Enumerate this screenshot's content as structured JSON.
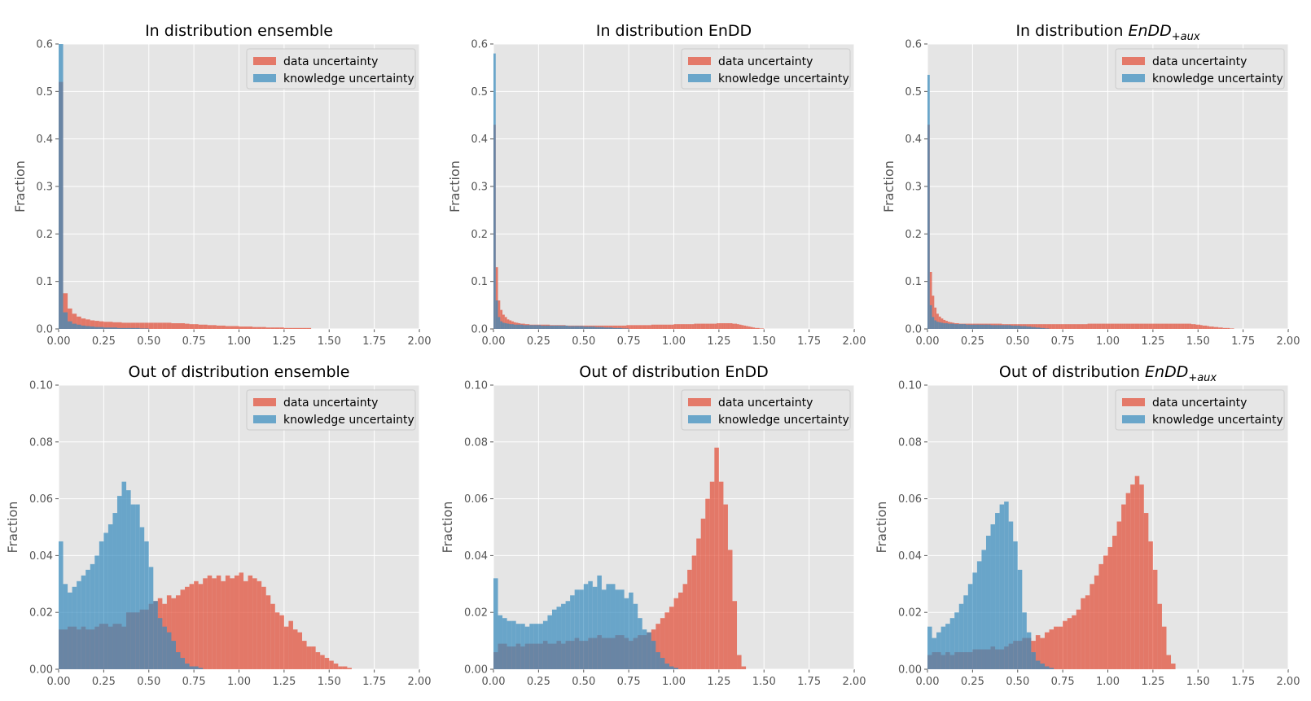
{
  "figure": {
    "grid": true,
    "background": "#e5e5e5",
    "colors": {
      "data": "#e24a33",
      "knowledge": "#348abd",
      "overlap": "#5a6b8a"
    }
  },
  "chart_data": [
    {
      "type": "histogram",
      "title": "In distribution ensemble",
      "title_parts": [
        "In distribution ensemble"
      ],
      "ylabel": "Fraction",
      "xlim": [
        0,
        2
      ],
      "ylim": [
        0,
        0.6
      ],
      "xticks": [
        "0.00",
        "0.25",
        "0.50",
        "0.75",
        "1.00",
        "1.25",
        "1.50",
        "1.75",
        "2.00"
      ],
      "yticks": [
        "0.0",
        "0.1",
        "0.2",
        "0.3",
        "0.4",
        "0.5",
        "0.6"
      ],
      "legend": "top-right",
      "bin_width": 0.025,
      "series": [
        {
          "name": "data uncertainty",
          "color": "#e24a33",
          "values": [
            0.52,
            0.075,
            0.043,
            0.032,
            0.026,
            0.022,
            0.02,
            0.018,
            0.017,
            0.016,
            0.015,
            0.015,
            0.014,
            0.014,
            0.013,
            0.013,
            0.013,
            0.013,
            0.013,
            0.013,
            0.013,
            0.013,
            0.013,
            0.013,
            0.013,
            0.012,
            0.012,
            0.012,
            0.011,
            0.01,
            0.01,
            0.009,
            0.009,
            0.008,
            0.008,
            0.007,
            0.007,
            0.006,
            0.006,
            0.006,
            0.005,
            0.005,
            0.005,
            0.004,
            0.004,
            0.004,
            0.003,
            0.003,
            0.003,
            0.003,
            0.002,
            0.002,
            0.002,
            0.002,
            0.002,
            0.002
          ]
        },
        {
          "name": "knowledge uncertainty",
          "color": "#348abd",
          "values": [
            0.6,
            0.035,
            0.016,
            0.011,
            0.009,
            0.007,
            0.006,
            0.005,
            0.004,
            0.004,
            0.003,
            0.003,
            0.003,
            0.002,
            0.002,
            0.002,
            0.002,
            0.002,
            0.001,
            0.001
          ]
        }
      ]
    },
    {
      "type": "histogram",
      "title": "In distribution EnDD",
      "title_parts": [
        "In distribution EnDD"
      ],
      "ylabel": "Fraction",
      "xlim": [
        0,
        2
      ],
      "ylim": [
        0,
        0.6
      ],
      "xticks": [
        "0.00",
        "0.25",
        "0.50",
        "0.75",
        "1.00",
        "1.25",
        "1.50",
        "1.75",
        "2.00"
      ],
      "yticks": [
        "0.0",
        "0.1",
        "0.2",
        "0.3",
        "0.4",
        "0.5",
        "0.6"
      ],
      "legend": "top-right",
      "bin_width": 0.0125,
      "series": [
        {
          "name": "data uncertainty",
          "color": "#e24a33",
          "values": [
            0.43,
            0.13,
            0.06,
            0.04,
            0.03,
            0.025,
            0.02,
            0.018,
            0.016,
            0.014,
            0.013,
            0.012,
            0.011,
            0.011,
            0.01,
            0.01,
            0.009,
            0.009,
            0.009,
            0.009,
            0.009,
            0.009,
            0.009,
            0.009,
            0.009,
            0.008,
            0.008,
            0.008,
            0.008,
            0.008,
            0.008,
            0.008,
            0.007,
            0.007,
            0.007,
            0.007,
            0.007,
            0.007,
            0.007,
            0.007,
            0.007,
            0.007,
            0.007,
            0.007,
            0.007,
            0.007,
            0.007,
            0.007,
            0.007,
            0.007,
            0.007,
            0.007,
            0.007,
            0.007,
            0.007,
            0.007,
            0.007,
            0.007,
            0.007,
            0.008,
            0.008,
            0.008,
            0.008,
            0.008,
            0.008,
            0.008,
            0.008,
            0.008,
            0.008,
            0.008,
            0.009,
            0.009,
            0.009,
            0.009,
            0.009,
            0.009,
            0.009,
            0.009,
            0.009,
            0.009,
            0.01,
            0.01,
            0.01,
            0.01,
            0.01,
            0.01,
            0.01,
            0.01,
            0.01,
            0.011,
            0.011,
            0.011,
            0.011,
            0.011,
            0.011,
            0.011,
            0.011,
            0.011,
            0.011,
            0.012,
            0.012,
            0.012,
            0.012,
            0.012,
            0.012,
            0.012,
            0.011,
            0.011,
            0.01,
            0.009,
            0.008,
            0.007,
            0.006,
            0.005,
            0.004,
            0.003,
            0.002,
            0.002,
            0.001,
            0.001
          ]
        },
        {
          "name": "knowledge uncertainty",
          "color": "#348abd",
          "values": [
            0.58,
            0.06,
            0.025,
            0.016,
            0.013,
            0.012,
            0.011,
            0.01,
            0.01,
            0.009,
            0.009,
            0.009,
            0.009,
            0.008,
            0.008,
            0.008,
            0.008,
            0.008,
            0.008,
            0.008,
            0.008,
            0.007,
            0.007,
            0.007,
            0.007,
            0.007,
            0.007,
            0.007,
            0.007,
            0.007,
            0.007,
            0.007,
            0.007,
            0.006,
            0.006,
            0.006,
            0.006,
            0.006,
            0.006,
            0.006,
            0.005,
            0.005,
            0.005,
            0.005,
            0.005,
            0.004,
            0.004,
            0.004,
            0.004,
            0.003,
            0.003,
            0.003,
            0.003,
            0.002,
            0.002,
            0.002,
            0.002,
            0.001,
            0.001,
            0.001
          ]
        }
      ]
    },
    {
      "type": "histogram",
      "title": "In distribution EnDD+aux",
      "title_parts": [
        "In distribution ",
        "EnDD",
        "+aux"
      ],
      "ylabel": "Fraction",
      "xlim": [
        0,
        2
      ],
      "ylim": [
        0,
        0.6
      ],
      "xticks": [
        "0.00",
        "0.25",
        "0.50",
        "0.75",
        "1.00",
        "1.25",
        "1.50",
        "1.75",
        "2.00"
      ],
      "yticks": [
        "0.0",
        "0.1",
        "0.2",
        "0.3",
        "0.4",
        "0.5",
        "0.6"
      ],
      "legend": "top-right",
      "bin_width": 0.0125,
      "series": [
        {
          "name": "data uncertainty",
          "color": "#e24a33",
          "values": [
            0.43,
            0.12,
            0.07,
            0.045,
            0.032,
            0.026,
            0.022,
            0.019,
            0.017,
            0.015,
            0.014,
            0.013,
            0.012,
            0.012,
            0.011,
            0.011,
            0.011,
            0.011,
            0.011,
            0.011,
            0.011,
            0.011,
            0.011,
            0.011,
            0.011,
            0.011,
            0.011,
            0.011,
            0.011,
            0.011,
            0.011,
            0.011,
            0.011,
            0.01,
            0.01,
            0.01,
            0.01,
            0.01,
            0.01,
            0.01,
            0.01,
            0.01,
            0.01,
            0.01,
            0.01,
            0.01,
            0.01,
            0.01,
            0.01,
            0.01,
            0.01,
            0.01,
            0.01,
            0.01,
            0.01,
            0.01,
            0.01,
            0.01,
            0.01,
            0.01,
            0.01,
            0.01,
            0.01,
            0.01,
            0.01,
            0.01,
            0.01,
            0.01,
            0.01,
            0.01,
            0.01,
            0.011,
            0.011,
            0.011,
            0.011,
            0.011,
            0.011,
            0.011,
            0.011,
            0.011,
            0.011,
            0.011,
            0.011,
            0.011,
            0.011,
            0.011,
            0.011,
            0.011,
            0.011,
            0.011,
            0.011,
            0.011,
            0.011,
            0.011,
            0.011,
            0.011,
            0.011,
            0.011,
            0.011,
            0.011,
            0.011,
            0.011,
            0.011,
            0.011,
            0.011,
            0.011,
            0.011,
            0.011,
            0.011,
            0.011,
            0.011,
            0.011,
            0.011,
            0.011,
            0.011,
            0.011,
            0.011,
            0.01,
            0.01,
            0.009,
            0.009,
            0.008,
            0.007,
            0.007,
            0.006,
            0.005,
            0.005,
            0.004,
            0.004,
            0.003,
            0.003,
            0.002,
            0.002,
            0.002,
            0.001,
            0.001
          ]
        },
        {
          "name": "knowledge uncertainty",
          "color": "#348abd",
          "values": [
            0.535,
            0.05,
            0.025,
            0.018,
            0.015,
            0.014,
            0.013,
            0.012,
            0.012,
            0.011,
            0.011,
            0.011,
            0.01,
            0.01,
            0.01,
            0.01,
            0.01,
            0.009,
            0.009,
            0.009,
            0.009,
            0.009,
            0.009,
            0.009,
            0.009,
            0.009,
            0.009,
            0.009,
            0.008,
            0.008,
            0.008,
            0.008,
            0.008,
            0.008,
            0.008,
            0.008,
            0.008,
            0.007,
            0.007,
            0.007,
            0.007,
            0.006,
            0.006,
            0.006,
            0.005,
            0.005,
            0.004,
            0.004,
            0.003,
            0.003,
            0.002,
            0.002,
            0.001,
            0.001
          ]
        }
      ]
    },
    {
      "type": "histogram",
      "title": "Out of distribution ensemble",
      "title_parts": [
        "Out of distribution ensemble"
      ],
      "ylabel": "Fraction",
      "xlim": [
        0,
        2
      ],
      "ylim": [
        0,
        0.1
      ],
      "xticks": [
        "0.00",
        "0.25",
        "0.50",
        "0.75",
        "1.00",
        "1.25",
        "1.50",
        "1.75",
        "2.00"
      ],
      "yticks": [
        "0.00",
        "0.02",
        "0.04",
        "0.06",
        "0.08",
        "0.10"
      ],
      "legend": "top-right",
      "bin_width": 0.025,
      "series": [
        {
          "name": "data uncertainty",
          "color": "#e24a33",
          "values": [
            0.014,
            0.014,
            0.015,
            0.015,
            0.014,
            0.015,
            0.014,
            0.014,
            0.015,
            0.016,
            0.016,
            0.015,
            0.016,
            0.016,
            0.015,
            0.02,
            0.02,
            0.02,
            0.021,
            0.021,
            0.023,
            0.024,
            0.025,
            0.023,
            0.026,
            0.025,
            0.026,
            0.028,
            0.029,
            0.03,
            0.031,
            0.03,
            0.032,
            0.033,
            0.032,
            0.033,
            0.031,
            0.033,
            0.032,
            0.033,
            0.034,
            0.031,
            0.033,
            0.032,
            0.031,
            0.029,
            0.026,
            0.023,
            0.02,
            0.019,
            0.015,
            0.017,
            0.014,
            0.013,
            0.01,
            0.008,
            0.008,
            0.006,
            0.005,
            0.004,
            0.003,
            0.002,
            0.001,
            0.001,
            0.0005
          ]
        },
        {
          "name": "knowledge uncertainty",
          "color": "#348abd",
          "values": [
            0.045,
            0.03,
            0.027,
            0.029,
            0.031,
            0.033,
            0.035,
            0.037,
            0.04,
            0.045,
            0.048,
            0.051,
            0.055,
            0.061,
            0.066,
            0.063,
            0.058,
            0.058,
            0.05,
            0.045,
            0.036,
            0.024,
            0.018,
            0.015,
            0.013,
            0.01,
            0.006,
            0.004,
            0.002,
            0.001,
            0.001,
            0.0005
          ]
        }
      ]
    },
    {
      "type": "histogram",
      "title": "Out of distribution EnDD",
      "title_parts": [
        "Out of distribution EnDD"
      ],
      "ylabel": "Fraction",
      "xlim": [
        0,
        2
      ],
      "ylim": [
        0,
        0.1
      ],
      "xticks": [
        "0.00",
        "0.25",
        "0.50",
        "0.75",
        "1.00",
        "1.25",
        "1.50",
        "1.75",
        "2.00"
      ],
      "yticks": [
        "0.00",
        "0.02",
        "0.04",
        "0.06",
        "0.08",
        "0.10"
      ],
      "legend": "top-right",
      "bin_width": 0.025,
      "series": [
        {
          "name": "data uncertainty",
          "color": "#e24a33",
          "values": [
            0.006,
            0.009,
            0.009,
            0.008,
            0.008,
            0.009,
            0.008,
            0.009,
            0.009,
            0.009,
            0.009,
            0.01,
            0.009,
            0.009,
            0.01,
            0.009,
            0.01,
            0.01,
            0.011,
            0.01,
            0.01,
            0.011,
            0.011,
            0.012,
            0.011,
            0.011,
            0.011,
            0.012,
            0.012,
            0.011,
            0.01,
            0.011,
            0.012,
            0.012,
            0.013,
            0.014,
            0.016,
            0.018,
            0.02,
            0.022,
            0.025,
            0.027,
            0.03,
            0.035,
            0.04,
            0.046,
            0.053,
            0.06,
            0.066,
            0.078,
            0.066,
            0.058,
            0.042,
            0.024,
            0.005,
            0.001
          ]
        },
        {
          "name": "knowledge uncertainty",
          "color": "#348abd",
          "values": [
            0.032,
            0.019,
            0.018,
            0.017,
            0.017,
            0.016,
            0.016,
            0.015,
            0.016,
            0.016,
            0.016,
            0.017,
            0.019,
            0.021,
            0.022,
            0.023,
            0.024,
            0.026,
            0.028,
            0.028,
            0.03,
            0.031,
            0.029,
            0.033,
            0.028,
            0.03,
            0.03,
            0.028,
            0.028,
            0.025,
            0.027,
            0.023,
            0.018,
            0.014,
            0.013,
            0.01,
            0.006,
            0.004,
            0.002,
            0.001,
            0.0005
          ]
        }
      ]
    },
    {
      "type": "histogram",
      "title": "Out of distribution EnDD+aux",
      "title_parts": [
        "Out of distribution ",
        "EnDD",
        "+aux"
      ],
      "ylabel": "Fraction",
      "xlim": [
        0,
        2
      ],
      "ylim": [
        0,
        0.1
      ],
      "xticks": [
        "0.00",
        "0.25",
        "0.50",
        "0.75",
        "1.00",
        "1.25",
        "1.50",
        "1.75",
        "2.00"
      ],
      "yticks": [
        "0.00",
        "0.02",
        "0.04",
        "0.06",
        "0.08",
        "0.10"
      ],
      "legend": "top-right",
      "bin_width": 0.025,
      "series": [
        {
          "name": "data uncertainty",
          "color": "#e24a33",
          "values": [
            0.005,
            0.006,
            0.006,
            0.005,
            0.006,
            0.005,
            0.006,
            0.006,
            0.006,
            0.006,
            0.007,
            0.007,
            0.007,
            0.007,
            0.008,
            0.007,
            0.007,
            0.008,
            0.009,
            0.01,
            0.01,
            0.011,
            0.011,
            0.01,
            0.012,
            0.011,
            0.013,
            0.014,
            0.015,
            0.015,
            0.017,
            0.018,
            0.019,
            0.021,
            0.025,
            0.026,
            0.03,
            0.033,
            0.037,
            0.04,
            0.043,
            0.047,
            0.052,
            0.058,
            0.062,
            0.065,
            0.068,
            0.065,
            0.055,
            0.045,
            0.035,
            0.023,
            0.015,
            0.005,
            0.002
          ]
        },
        {
          "name": "knowledge uncertainty",
          "color": "#348abd",
          "values": [
            0.015,
            0.011,
            0.013,
            0.015,
            0.016,
            0.018,
            0.02,
            0.023,
            0.026,
            0.03,
            0.034,
            0.038,
            0.042,
            0.047,
            0.051,
            0.055,
            0.058,
            0.059,
            0.052,
            0.045,
            0.035,
            0.02,
            0.013,
            0.006,
            0.003,
            0.002,
            0.001,
            0.0005
          ]
        }
      ]
    }
  ]
}
